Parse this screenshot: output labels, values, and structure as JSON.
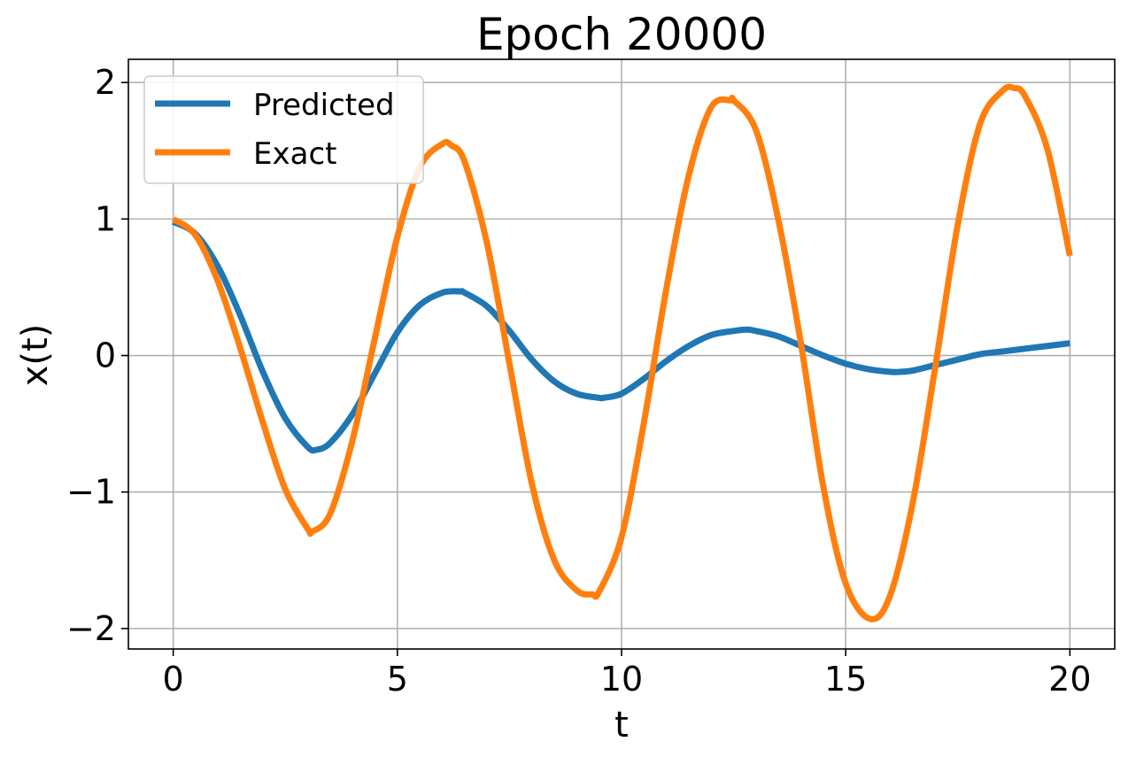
{
  "chart_data": {
    "type": "line",
    "title": "Epoch 20000",
    "xlabel": "t",
    "ylabel": "x(t)",
    "xlim": [
      -1,
      21
    ],
    "ylim": [
      -2.15,
      2.17
    ],
    "grid": true,
    "legend_position": "top-left",
    "xticks": [
      0,
      5,
      10,
      15,
      20
    ],
    "xtick_labels": [
      "0",
      "5",
      "10",
      "15",
      "20"
    ],
    "yticks": [
      -2,
      -1,
      0,
      1,
      2
    ],
    "ytick_labels": [
      "−2",
      "−1",
      "0",
      "1",
      "2"
    ],
    "series": [
      {
        "name": "Predicted",
        "color": "#1f77b4",
        "x": [
          0,
          0.5,
          1,
          1.5,
          2,
          2.5,
          3,
          3.2,
          3.5,
          4,
          4.5,
          5,
          5.5,
          6,
          6.4,
          6.5,
          7,
          7.5,
          8,
          8.5,
          9,
          9.5,
          9.6,
          10,
          10.5,
          11,
          11.5,
          12,
          12.5,
          12.8,
          13,
          13.5,
          14,
          14.5,
          15,
          15.5,
          16,
          16.2,
          16.5,
          17,
          17.5,
          18,
          18.5,
          19,
          19.5,
          20
        ],
        "y": [
          0.98,
          0.89,
          0.65,
          0.29,
          -0.12,
          -0.46,
          -0.67,
          -0.69,
          -0.64,
          -0.43,
          -0.13,
          0.17,
          0.37,
          0.46,
          0.47,
          0.46,
          0.36,
          0.18,
          -0.03,
          -0.19,
          -0.28,
          -0.31,
          -0.31,
          -0.28,
          -0.17,
          -0.04,
          0.07,
          0.15,
          0.18,
          0.19,
          0.18,
          0.14,
          0.07,
          0.0,
          -0.06,
          -0.1,
          -0.12,
          -0.12,
          -0.11,
          -0.07,
          -0.03,
          0.01,
          0.03,
          0.05,
          0.07,
          0.09
        ]
      },
      {
        "name": "Exact",
        "color": "#ff7f0e",
        "x": [
          0,
          0.5,
          1,
          1.5,
          2,
          2.5,
          3,
          3.1,
          3.5,
          4,
          4.5,
          5,
          5.5,
          6,
          6.2,
          6.5,
          7,
          7.5,
          8,
          8.5,
          9,
          9.35,
          9.5,
          10,
          10.5,
          11,
          11.5,
          12,
          12.45,
          12.5,
          13,
          13.5,
          14,
          14.5,
          15,
          15.55,
          16,
          16.5,
          17,
          17.5,
          18,
          18.5,
          18.75,
          19,
          19.5,
          20
        ],
        "y": [
          1.0,
          0.88,
          0.54,
          0.05,
          -0.49,
          -0.98,
          -1.27,
          -1.29,
          -1.16,
          -0.62,
          0.13,
          0.87,
          1.38,
          1.55,
          1.54,
          1.42,
          0.82,
          -0.06,
          -0.94,
          -1.5,
          -1.72,
          -1.75,
          -1.73,
          -1.33,
          -0.49,
          0.49,
          1.32,
          1.82,
          1.87,
          1.87,
          1.65,
          0.99,
          0.09,
          -0.96,
          -1.67,
          -1.93,
          -1.75,
          -1.07,
          -0.08,
          0.96,
          1.7,
          1.94,
          1.96,
          1.9,
          1.51,
          0.73
        ]
      }
    ]
  }
}
